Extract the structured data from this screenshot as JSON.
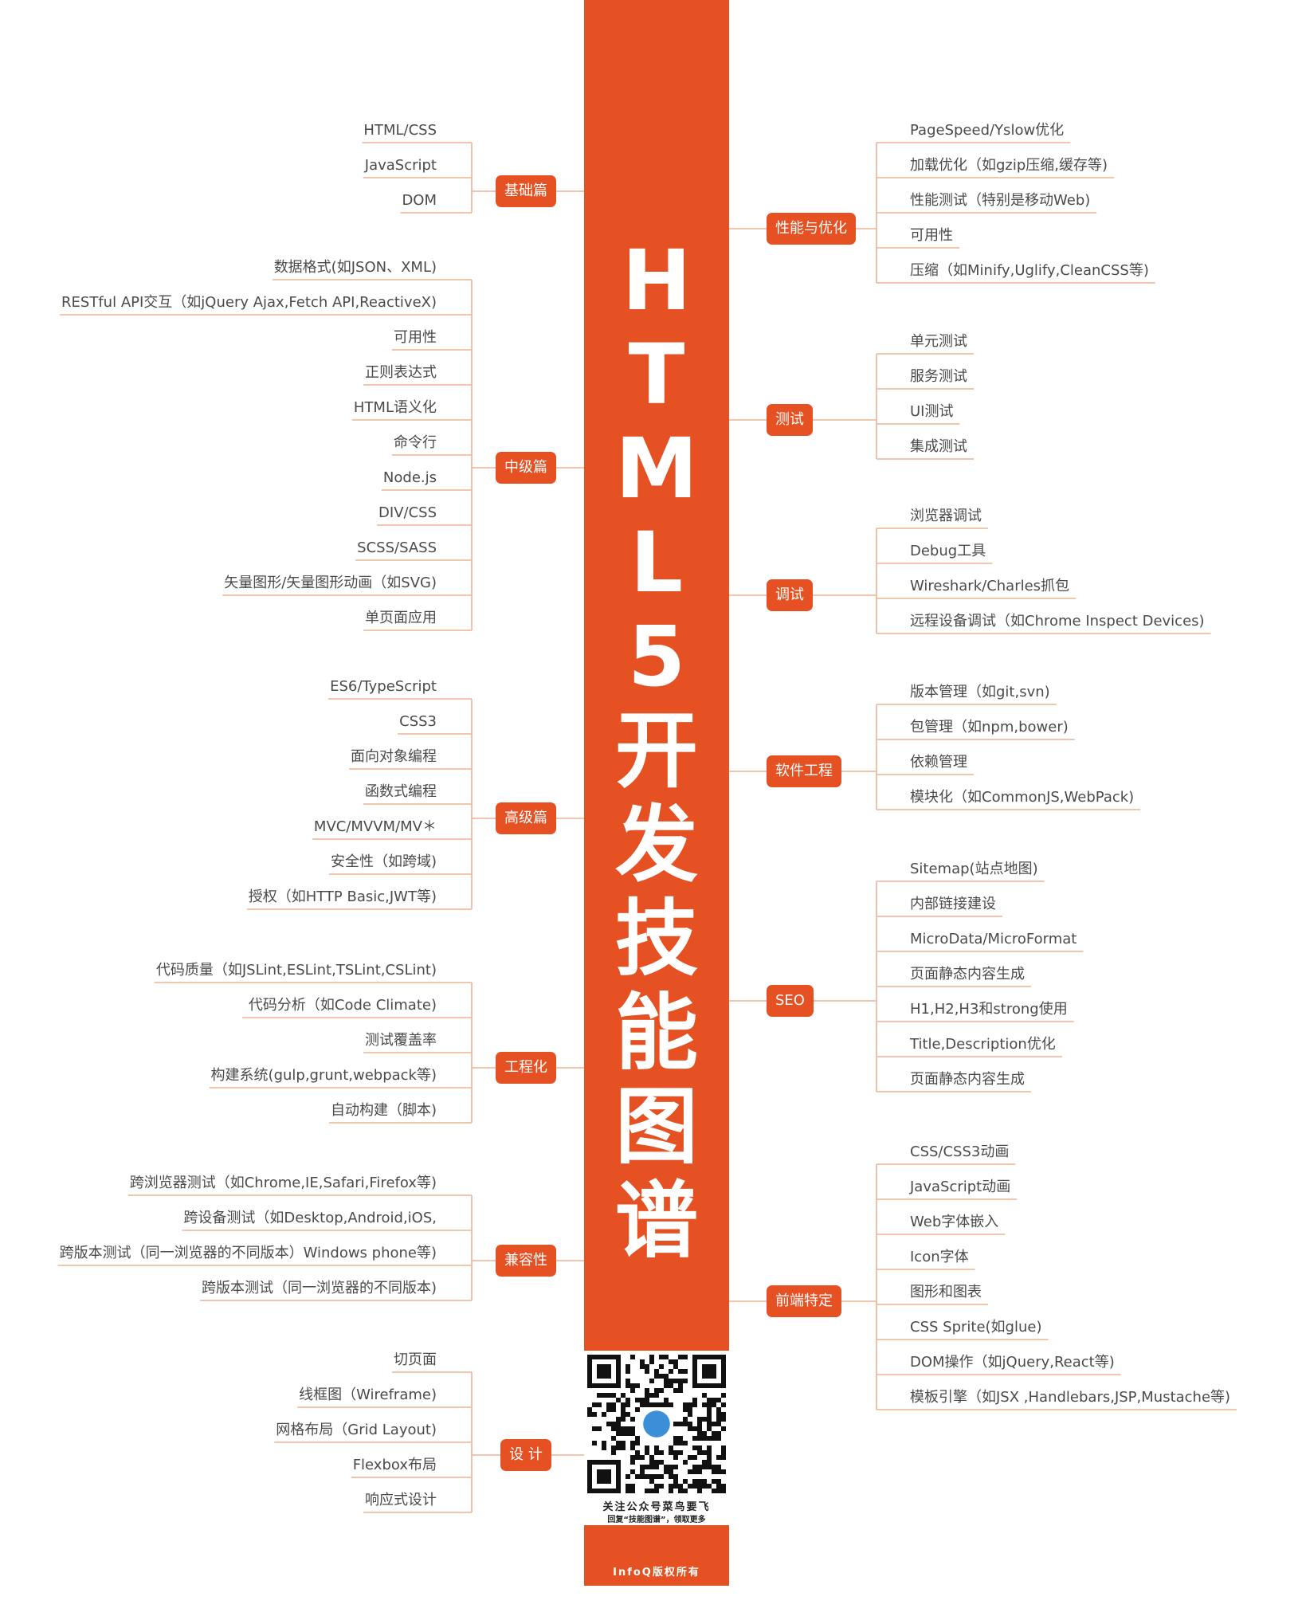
{
  "title_chars": [
    "H",
    "T",
    "M",
    "L",
    "5",
    "开",
    "发",
    "技",
    "能",
    "图",
    "谱"
  ],
  "qr": {
    "caption": "关注公众号菜鸟要飞",
    "sub": "回复“技能图谱”，领取更多"
  },
  "copyright": "InfoQ版权所有",
  "colors": {
    "accent": "#e55122",
    "line": "#ecb394",
    "text": "#4a4a4a"
  },
  "left_branches": [
    {
      "label": "基础篇",
      "items": [
        "HTML/CSS",
        "JavaScript",
        "DOM"
      ]
    },
    {
      "label": "中级篇",
      "items": [
        "数据格式(如JSON、XML)",
        "RESTful API交互（如jQuery Ajax,Fetch API,ReactiveX)",
        "可用性",
        "正则表达式",
        "HTML语义化",
        "命令行",
        "Node.js",
        "DIV/CSS",
        "SCSS/SASS",
        "矢量图形/矢量图形动画（如SVG)",
        "单页面应用"
      ]
    },
    {
      "label": "高级篇",
      "items": [
        "ES6/TypeScript",
        "CSS3",
        "面向对象编程",
        "函数式编程",
        "MVC/MVVM/MV＊",
        "安全性（如跨域)",
        "授权（如HTTP Basic,JWT等)"
      ]
    },
    {
      "label": "工程化",
      "items": [
        "代码质量（如JSLint,ESLint,TSLint,CSLint)",
        "代码分析（如Code  Climate)",
        "测试覆盖率",
        "构建系统(gulp,grunt,webpack等)",
        "自动构建（脚本)"
      ]
    },
    {
      "label": "兼容性",
      "items": [
        "跨浏览器测试（如Chrome,IE,Safari,Firefox等)",
        "跨设备测试（如Desktop,Android,iOS,",
        "跨版本测试（同一浏览器的不同版本）Windows phone等)",
        "跨版本测试（同一浏览器的不同版本)"
      ]
    },
    {
      "label": "设 计",
      "items": [
        "切页面",
        "线框图（Wireframe)",
        "网格布局（Grid Layout)",
        "Flexbox布局",
        "响应式设计"
      ]
    }
  ],
  "right_branches": [
    {
      "label": "性能与优化",
      "items": [
        "PageSpeed/Yslow优化",
        "加载优化（如gzip压缩,缓存等)",
        "性能测试（特别是移动Web)",
        "可用性",
        "压缩（如Minify,Uglify,CleanCSS等)"
      ]
    },
    {
      "label": "测试",
      "items": [
        "单元测试",
        "服务测试",
        "UI测试",
        "集成测试"
      ]
    },
    {
      "label": "调试",
      "items": [
        "浏览器调试",
        "Debug工具",
        "Wireshark/Charles抓包",
        "远程设备调试（如Chrome Inspect Devices)"
      ]
    },
    {
      "label": "软件工程",
      "items": [
        "版本管理（如git,svn)",
        "包管理（如npm,bower)",
        "依赖管理",
        "模块化（如CommonJS,WebPack)"
      ]
    },
    {
      "label": "SEO",
      "items": [
        "Sitemap(站点地图)",
        "内部链接建设",
        "MicroData/MicroFormat",
        "页面静态内容生成",
        "H1,H2,H3和strong使用",
        "Title,Description优化",
        "页面静态内容生成"
      ]
    },
    {
      "label": "前端特定",
      "items": [
        "CSS/CSS3动画",
        "JavaScript动画",
        "Web字体嵌入",
        "Icon字体",
        "图形和图表",
        "CSS Sprite(如glue)",
        "DOM操作（如jQuery,React等)",
        "模板引擎（如JSX ,Handlebars,JSP,Mustache等)"
      ]
    }
  ]
}
